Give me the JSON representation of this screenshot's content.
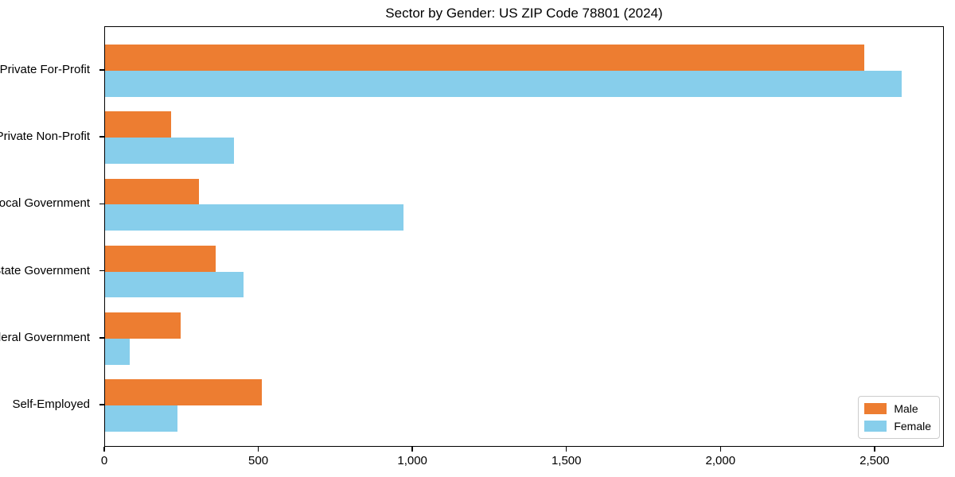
{
  "title": "Sector by Gender: US ZIP Code 78801 (2024)",
  "colors": {
    "male": "#ED7D31",
    "female": "#87CEEB",
    "axis": "#000000",
    "legend_border": "#cccccc",
    "background": "#ffffff"
  },
  "chart_data": {
    "type": "bar",
    "orientation": "horizontal",
    "title": "Sector by Gender: US ZIP Code 78801 (2024)",
    "categories": [
      "Private For-Profit",
      "Private Non-Profit",
      "Local Government",
      "State Government",
      "Federal Government",
      "Self-Employed"
    ],
    "series": [
      {
        "name": "Male",
        "color": "#ED7D31",
        "values": [
          2470,
          215,
          305,
          360,
          245,
          510
        ]
      },
      {
        "name": "Female",
        "color": "#87CEEB",
        "values": [
          2590,
          420,
          970,
          450,
          80,
          235
        ]
      }
    ],
    "xlabel": "",
    "ylabel": "",
    "xlim": [
      0,
      2725
    ],
    "xticks": [
      0,
      500,
      1000,
      1500,
      2000,
      2500
    ],
    "xtick_labels": [
      "0",
      "500",
      "1,000",
      "1,500",
      "2,000",
      "2,500"
    ],
    "grid": false,
    "legend_position": "lower right"
  },
  "legend": {
    "items": [
      {
        "label": "Male"
      },
      {
        "label": "Female"
      }
    ]
  }
}
